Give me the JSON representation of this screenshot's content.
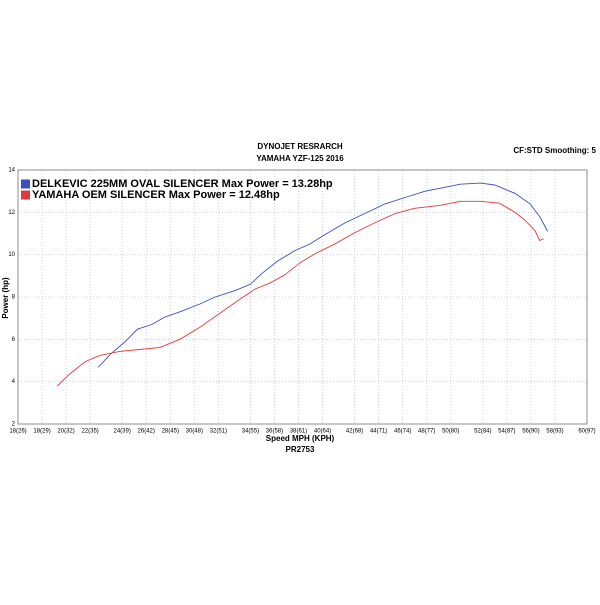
{
  "chart_data": {
    "type": "line",
    "title": "DYNOJET RESRARCH",
    "subtitle": "YAMAHA YZF-125 2016",
    "annotation": "CF:STD Smoothing: 5",
    "x_label": "Speed MPH (KPH)",
    "x_sublabel": "PR2753",
    "y_label": "Power (hp)",
    "grid": true,
    "xlim": [
      26,
      97
    ],
    "xticks": [
      {
        "value": 26,
        "label": "18(26)"
      },
      {
        "value": 29,
        "label": "18(29)"
      },
      {
        "value": 32,
        "label": "20(32)"
      },
      {
        "value": 35,
        "label": "22(35)"
      },
      {
        "value": 39,
        "label": "24(39)"
      },
      {
        "value": 42,
        "label": "26(42)"
      },
      {
        "value": 45,
        "label": "28(45)"
      },
      {
        "value": 48,
        "label": "30(48)"
      },
      {
        "value": 51,
        "label": "32(51)"
      },
      {
        "value": 55,
        "label": "34(55)"
      },
      {
        "value": 58,
        "label": "36(58)"
      },
      {
        "value": 61,
        "label": "38(61)"
      },
      {
        "value": 64,
        "label": "40(64)"
      },
      {
        "value": 68,
        "label": "42(68)"
      },
      {
        "value": 71,
        "label": "44(71)"
      },
      {
        "value": 74,
        "label": "46(74)"
      },
      {
        "value": 77,
        "label": "48(77)"
      },
      {
        "value": 80,
        "label": "50(80)"
      },
      {
        "value": 84,
        "label": "52(84)"
      },
      {
        "value": 87,
        "label": "54(87)"
      },
      {
        "value": 90,
        "label": "56(90)"
      },
      {
        "value": 93,
        "label": "58(93)"
      },
      {
        "value": 97,
        "label": "60(97)"
      }
    ],
    "ylim": [
      2,
      14
    ],
    "yticks": [
      2,
      4,
      6,
      8,
      10,
      12,
      14
    ],
    "series": [
      {
        "name": "DELKEVIC 225MM OVAL SILENCER Max Power = 13.28hp",
        "color": "#3b4fc4",
        "x": [
          36.0,
          37.5,
          39.4,
          40.9,
          42.7,
          44.3,
          46.2,
          48.7,
          50.6,
          53.1,
          55.0,
          56.4,
          58.4,
          60.6,
          62.4,
          64.3,
          66.8,
          69.3,
          71.8,
          74.3,
          76.8,
          78.7,
          81.2,
          83.7,
          85.5,
          88.0,
          89.9,
          91.1,
          92.1
        ],
        "values": [
          4.67,
          5.29,
          5.9,
          6.48,
          6.7,
          7.05,
          7.3,
          7.67,
          8.0,
          8.3,
          8.6,
          9.1,
          9.7,
          10.2,
          10.5,
          10.95,
          11.5,
          11.95,
          12.4,
          12.7,
          13.0,
          13.14,
          13.33,
          13.38,
          13.29,
          12.9,
          12.4,
          11.8,
          11.1
        ]
      },
      {
        "name": "YAMAHA OEM SILENCER Max Power = 12.48hp",
        "color": "#e03a3a",
        "x": [
          30.9,
          32.5,
          34.4,
          36.2,
          38.7,
          41.2,
          43.7,
          46.2,
          48.7,
          51.2,
          53.7,
          55.6,
          57.5,
          59.3,
          61.2,
          63.1,
          65.6,
          68.1,
          70.6,
          73.1,
          75.5,
          78.7,
          81.2,
          83.7,
          86.1,
          88.0,
          89.3,
          90.5,
          91.1,
          91.6
        ],
        "values": [
          3.8,
          4.38,
          4.95,
          5.24,
          5.43,
          5.52,
          5.62,
          6.0,
          6.57,
          7.24,
          7.9,
          8.38,
          8.67,
          9.05,
          9.62,
          10.05,
          10.52,
          11.05,
          11.52,
          11.95,
          12.19,
          12.33,
          12.52,
          12.52,
          12.43,
          12.0,
          11.62,
          11.14,
          10.67,
          10.76
        ]
      }
    ]
  }
}
